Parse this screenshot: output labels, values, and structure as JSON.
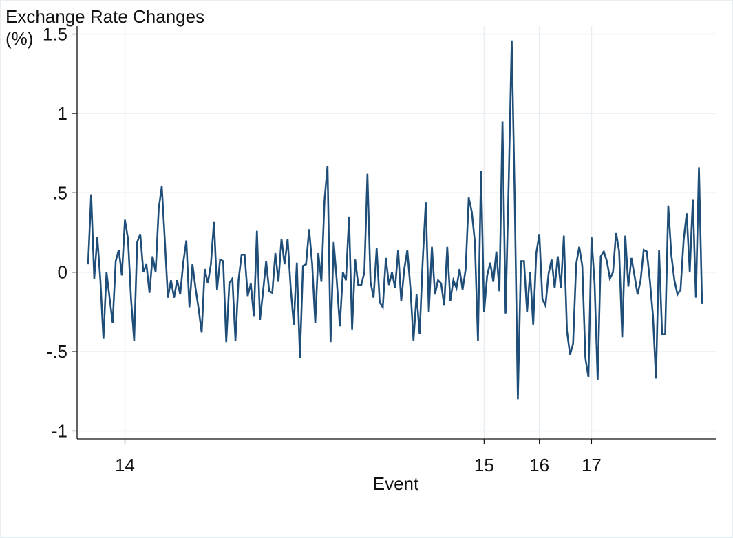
{
  "chart_data": {
    "type": "line",
    "ylabel_line1": "Exchange Rate Changes",
    "ylabel_line2": "(%)",
    "xlabel": "Event",
    "ylim": [
      -1.05,
      1.55
    ],
    "y_ticks": [
      -1,
      -0.5,
      0,
      0.5,
      1,
      1.5
    ],
    "y_tick_labels": [
      "-1",
      "-.5",
      "0",
      ".5",
      "1",
      "1.5"
    ],
    "event_ticks": [
      {
        "index": 12,
        "label": "14"
      },
      {
        "index": 129,
        "label": "15"
      },
      {
        "index": 147,
        "label": "16"
      },
      {
        "index": 164,
        "label": "17"
      }
    ],
    "grid": true,
    "line_color": "#1f4e79",
    "series": [
      {
        "values": [
          0.05,
          0.49,
          -0.04,
          0.22,
          -0.05,
          -0.42,
          0.0,
          -0.16,
          -0.32,
          0.07,
          0.14,
          -0.02,
          0.33,
          0.21,
          -0.17,
          -0.43,
          0.19,
          0.24,
          0.0,
          0.05,
          -0.13,
          0.1,
          0.0,
          0.4,
          0.54,
          0.2,
          -0.16,
          -0.05,
          -0.16,
          -0.05,
          -0.14,
          0.06,
          0.2,
          -0.22,
          0.05,
          -0.1,
          -0.23,
          -0.38,
          0.02,
          -0.07,
          0.05,
          0.32,
          -0.11,
          0.08,
          0.07,
          -0.44,
          -0.07,
          -0.04,
          -0.43,
          -0.05,
          0.11,
          0.11,
          -0.15,
          -0.07,
          -0.28,
          0.26,
          -0.3,
          -0.12,
          0.07,
          -0.12,
          -0.13,
          0.12,
          -0.06,
          0.21,
          0.05,
          0.21,
          -0.1,
          -0.33,
          0.06,
          -0.54,
          0.04,
          0.05,
          0.27,
          0.05,
          -0.32,
          0.12,
          -0.06,
          0.45,
          0.67,
          -0.44,
          0.19,
          -0.05,
          -0.34,
          0.0,
          -0.05,
          0.35,
          -0.36,
          0.08,
          -0.08,
          -0.08,
          0.0,
          0.62,
          -0.06,
          -0.16,
          0.15,
          -0.19,
          -0.22,
          0.09,
          -0.08,
          0.0,
          -0.1,
          0.14,
          -0.18,
          0.02,
          0.14,
          -0.1,
          -0.43,
          -0.14,
          -0.39,
          0.07,
          0.44,
          -0.25,
          0.16,
          -0.14,
          -0.05,
          -0.07,
          -0.21,
          0.16,
          -0.18,
          -0.05,
          -0.1,
          0.02,
          -0.11,
          0.02,
          0.47,
          0.38,
          0.19,
          -0.43,
          0.64,
          -0.25,
          -0.02,
          0.06,
          -0.06,
          0.13,
          -0.12,
          0.95,
          -0.26,
          0.55,
          1.46,
          0.44,
          -0.8,
          0.07,
          0.07,
          -0.25,
          0.0,
          -0.33,
          0.12,
          0.24,
          -0.17,
          -0.21,
          -0.01,
          0.08,
          -0.1,
          0.1,
          -0.1,
          0.23,
          -0.37,
          -0.52,
          -0.45,
          0.05,
          0.16,
          0.04,
          -0.54,
          -0.66,
          0.22,
          -0.07,
          -0.68,
          0.1,
          0.13,
          0.07,
          -0.04,
          0.0,
          0.25,
          0.13,
          -0.41,
          0.23,
          -0.09,
          0.09,
          -0.02,
          -0.14,
          -0.05,
          0.14,
          0.13,
          -0.05,
          -0.27,
          -0.67,
          0.14,
          -0.39,
          -0.39,
          0.42,
          0.11,
          -0.05,
          -0.14,
          -0.11,
          0.2,
          0.37,
          0.0,
          0.46,
          -0.16,
          0.66,
          -0.2
        ]
      }
    ]
  }
}
